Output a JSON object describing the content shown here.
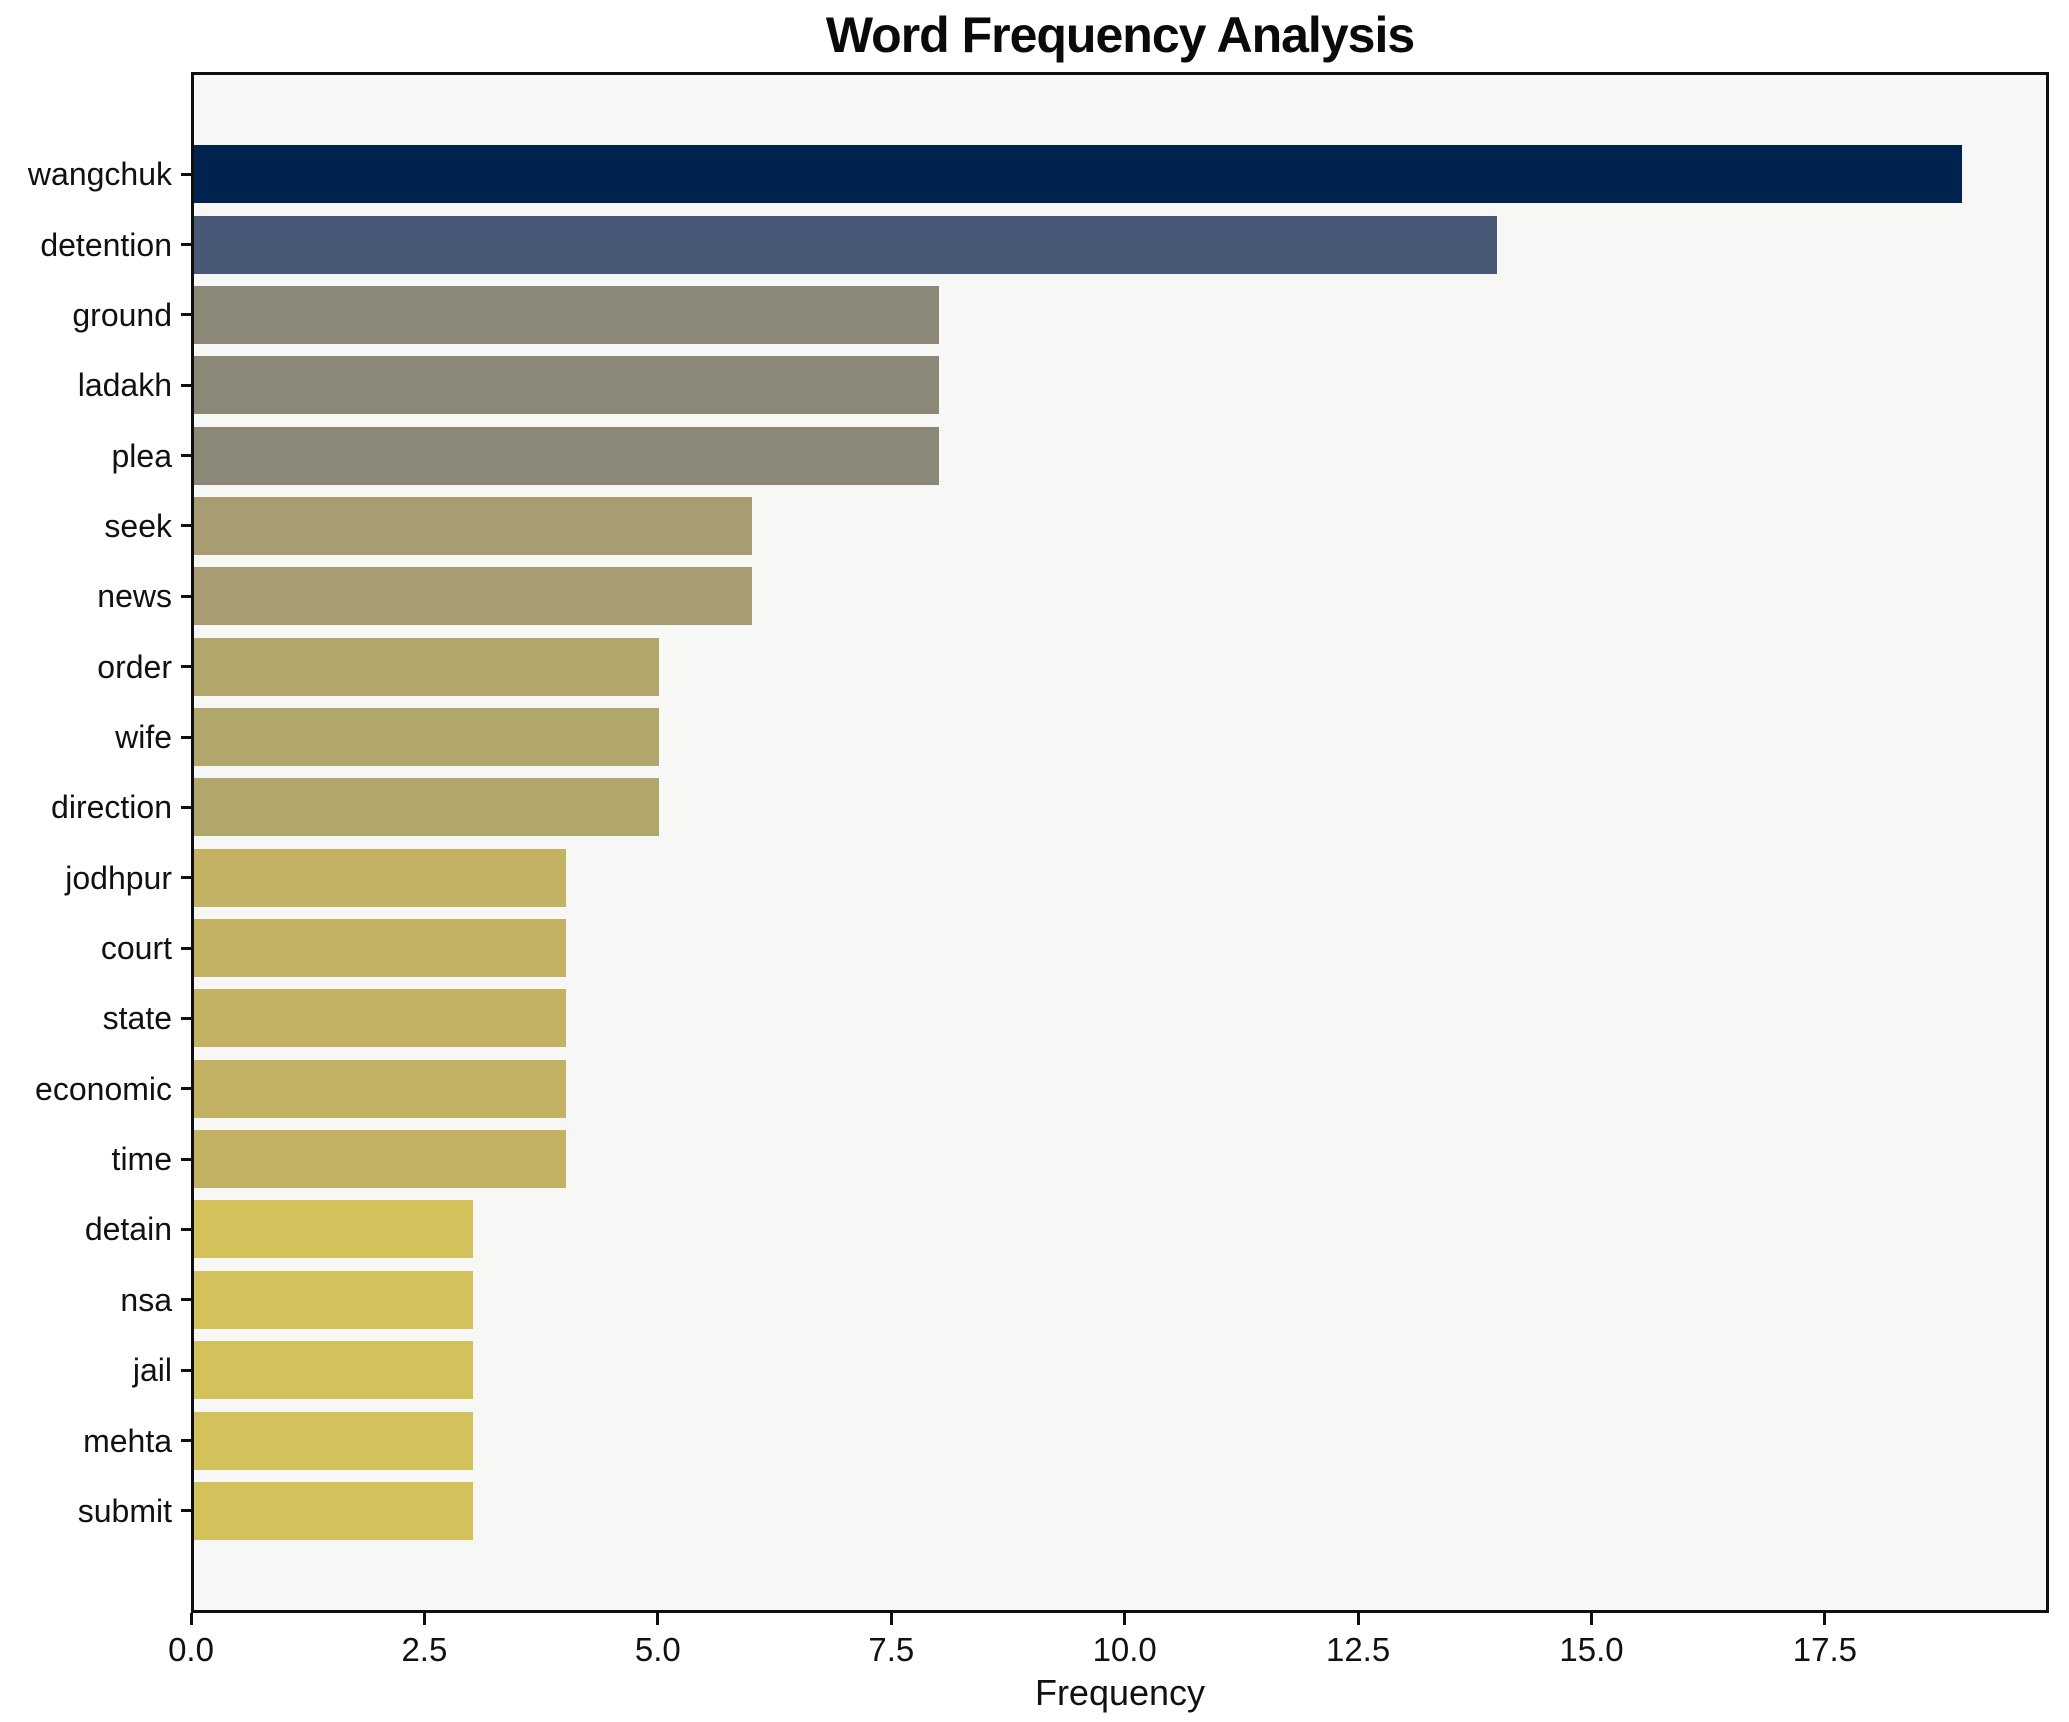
{
  "chart_data": {
    "type": "bar",
    "orientation": "horizontal",
    "title": "Word Frequency Analysis",
    "xlabel": "Frequency",
    "ylabel": "",
    "categories": [
      "wangchuk",
      "detention",
      "ground",
      "ladakh",
      "plea",
      "seek",
      "news",
      "order",
      "wife",
      "direction",
      "jodhpur",
      "court",
      "state",
      "economic",
      "time",
      "detain",
      "nsa",
      "jail",
      "mehta",
      "submit"
    ],
    "values": [
      19,
      14,
      8,
      8,
      8,
      6,
      6,
      5,
      5,
      5,
      4,
      4,
      4,
      4,
      4,
      3,
      3,
      3,
      3,
      3
    ],
    "bar_colors": [
      "#00224e",
      "#4a5878",
      "#8c8878",
      "#8c8878",
      "#8c8878",
      "#a89d72",
      "#a89d72",
      "#b1a66c",
      "#b1a66c",
      "#b1a66c",
      "#c3b264",
      "#c3b264",
      "#c3b264",
      "#c3b264",
      "#c3b264",
      "#d3c15c",
      "#d3c15c",
      "#d3c15c",
      "#d3c15c",
      "#d3c15c"
    ],
    "x_ticks": [
      0.0,
      2.5,
      5.0,
      7.5,
      10.0,
      12.5,
      15.0,
      17.5
    ],
    "x_tick_labels": [
      "0.0",
      "2.5",
      "5.0",
      "7.5",
      "10.0",
      "12.5",
      "15.0",
      "17.5"
    ],
    "xlim": [
      0,
      19.9
    ],
    "grid": false,
    "legend": null,
    "plot_bg_color": "#f7f7f6",
    "figure_bg_color": "#ffffff",
    "spine_color": "#0f0f0f"
  }
}
